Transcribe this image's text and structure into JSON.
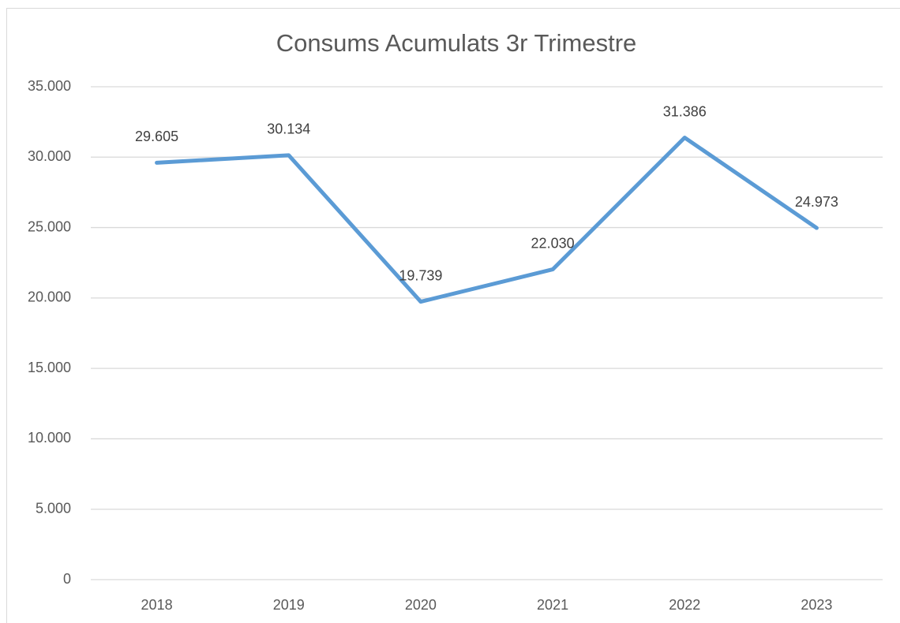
{
  "chart_data": {
    "type": "line",
    "title": "Consums Acumulats 3r Trimestre",
    "categories": [
      "2018",
      "2019",
      "2020",
      "2021",
      "2022",
      "2023"
    ],
    "series": [
      {
        "color": "#5b9bd5",
        "values": [
          29605,
          30134,
          19739,
          22030,
          31386,
          24973
        ],
        "value_labels": [
          "29.605",
          "30.134",
          "19.739",
          "22.030",
          "31.386",
          "24.973"
        ]
      }
    ],
    "ylim": [
      0,
      35000
    ],
    "yticks": [
      0,
      {
        "value": 5000,
        "label": "5.000"
      },
      {
        "value": 10000,
        "label": "10.000"
      },
      {
        "value": 15000,
        "label": "15.000"
      },
      {
        "value": 20000,
        "label": "20.000"
      },
      {
        "value": 25000,
        "label": "25.000"
      },
      {
        "value": 30000,
        "label": "30.000"
      },
      {
        "value": 35000,
        "label": "35.000"
      }
    ],
    "grid": true
  }
}
